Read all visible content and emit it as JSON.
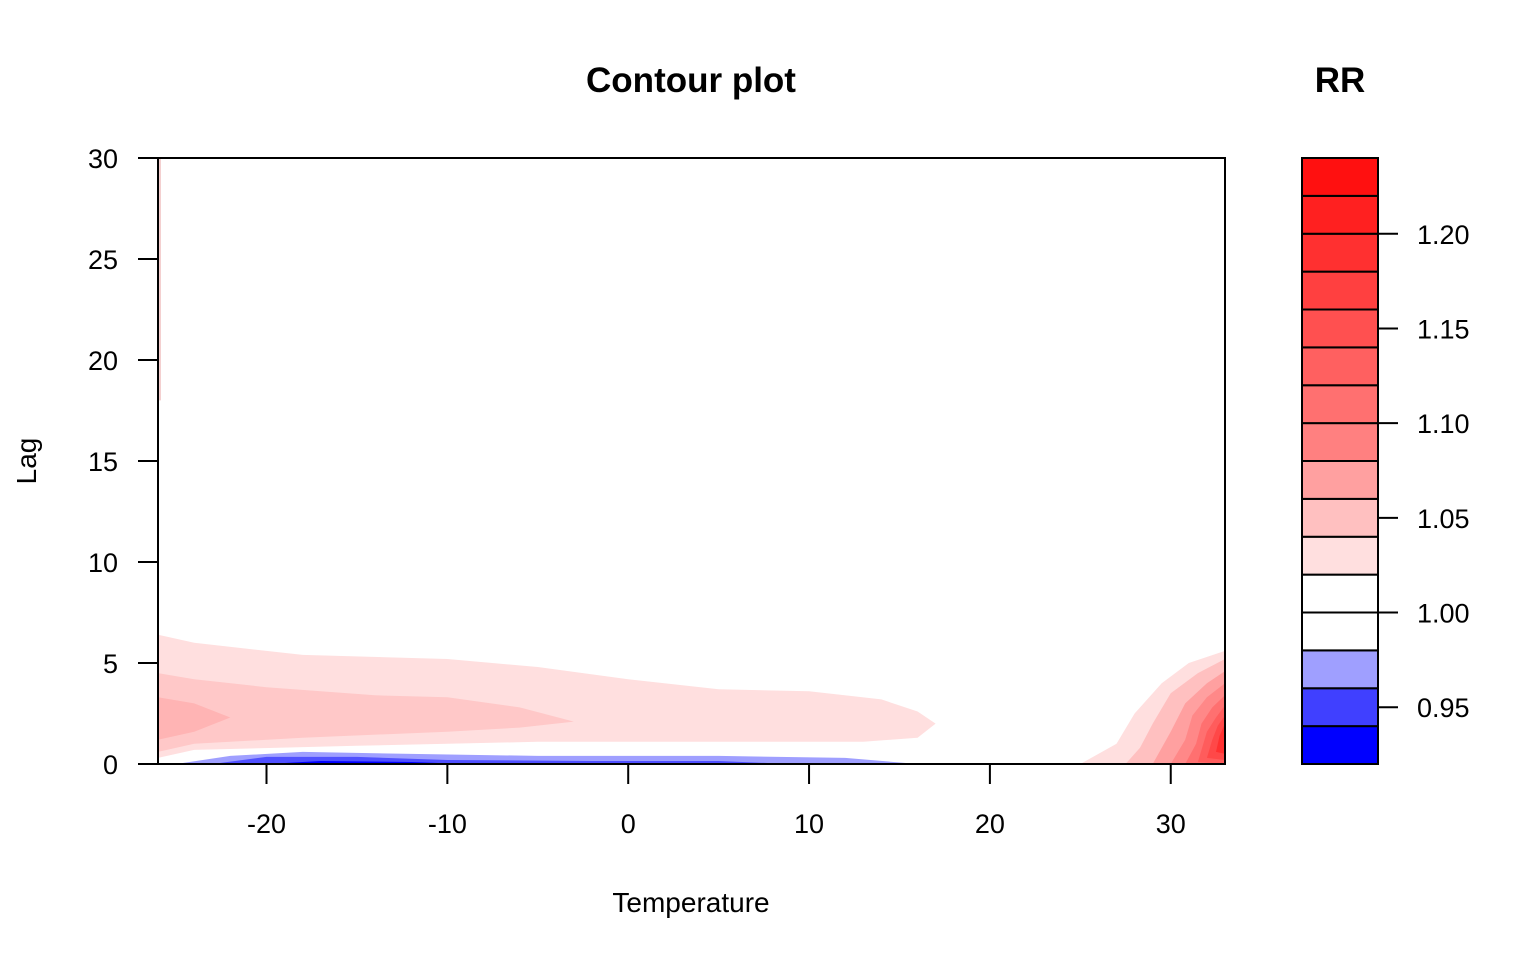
{
  "chart_data": {
    "type": "contour",
    "title": "Contour plot",
    "xlabel": "Temperature",
    "ylabel": "Lag",
    "xlim": [
      -26,
      33
    ],
    "ylim": [
      0,
      30
    ],
    "x_ticks": [
      "-20",
      "-10",
      "0",
      "10",
      "20",
      "30"
    ],
    "x_tick_values": [
      -20,
      -10,
      0,
      10,
      20,
      30
    ],
    "y_ticks": [
      "0",
      "5",
      "10",
      "15",
      "20",
      "25",
      "30"
    ],
    "y_tick_values": [
      0,
      5,
      10,
      15,
      20,
      25,
      30
    ],
    "legend": {
      "title": "RR",
      "placement": "right",
      "range": [
        0.92,
        1.24
      ],
      "levels": [
        0.92,
        0.94,
        0.96,
        0.98,
        1.0,
        1.02,
        1.04,
        1.06,
        1.08,
        1.1,
        1.12,
        1.14,
        1.16,
        1.18,
        1.2,
        1.22,
        1.24
      ],
      "colors": [
        "#0000ff",
        "#4040ff",
        "#9f9fff",
        "#ffffff",
        "#ffffff",
        "#ffdfdf",
        "#ffc0c0",
        "#ffa0a0",
        "#ff8080",
        "#ff7070",
        "#ff6060",
        "#ff5050",
        "#ff4040",
        "#ff3030",
        "#ff2020",
        "#ff1010"
      ],
      "tick_values": [
        0.95,
        1.0,
        1.05,
        1.1,
        1.15,
        1.2
      ],
      "tick_labels": [
        "0.95",
        "1.00",
        "1.05",
        "1.10",
        "1.15",
        "1.20"
      ]
    },
    "regions": [
      {
        "name": "low-lag-pale-pink",
        "rr": 1.02,
        "color": "#ffdfdf",
        "points": [
          [
            -26,
            0.3
          ],
          [
            -26,
            6.4
          ],
          [
            -24,
            6
          ],
          [
            -18,
            5.4
          ],
          [
            -10,
            5.2
          ],
          [
            -5,
            4.8
          ],
          [
            0,
            4.2
          ],
          [
            5,
            3.7
          ],
          [
            10,
            3.6
          ],
          [
            14,
            3.2
          ],
          [
            16,
            2.6
          ],
          [
            17,
            2.0
          ],
          [
            16,
            1.3
          ],
          [
            13,
            1.1
          ],
          [
            5,
            1.1
          ],
          [
            -5,
            1.1
          ],
          [
            -15,
            0.9
          ],
          [
            -24,
            0.7
          ]
        ]
      },
      {
        "name": "low-lag-pink",
        "rr": 1.04,
        "color": "#ffc8c8",
        "points": [
          [
            -26,
            0.6
          ],
          [
            -26,
            4.5
          ],
          [
            -24,
            4.2
          ],
          [
            -20,
            3.8
          ],
          [
            -14,
            3.4
          ],
          [
            -10,
            3.3
          ],
          [
            -6,
            2.8
          ],
          [
            -3,
            2.1
          ],
          [
            -6,
            1.8
          ],
          [
            -10,
            1.6
          ],
          [
            -18,
            1.3
          ],
          [
            -24,
            1.0
          ]
        ]
      },
      {
        "name": "low-lag-mid-pink",
        "rr": 1.06,
        "color": "#ffb4b4",
        "points": [
          [
            -26,
            1.2
          ],
          [
            -26,
            3.3
          ],
          [
            -24,
            3.0
          ],
          [
            -22,
            2.3
          ],
          [
            -24,
            1.6
          ]
        ]
      },
      {
        "name": "low-lag-blue-light",
        "rr": 0.97,
        "color": "#9f9fff",
        "points": [
          [
            -25,
            0
          ],
          [
            -22,
            0.4
          ],
          [
            -18,
            0.6
          ],
          [
            -12,
            0.5
          ],
          [
            -5,
            0.4
          ],
          [
            5,
            0.4
          ],
          [
            12,
            0.3
          ],
          [
            16,
            0
          ],
          [
            -25,
            0
          ]
        ]
      },
      {
        "name": "low-lag-blue-mid",
        "rr": 0.95,
        "color": "#5050ff",
        "points": [
          [
            -23,
            0
          ],
          [
            -20,
            0.35
          ],
          [
            -15,
            0.35
          ],
          [
            -10,
            0.2
          ],
          [
            -2,
            0.15
          ],
          [
            5,
            0.15
          ],
          [
            9,
            0
          ],
          [
            -23,
            0
          ]
        ]
      },
      {
        "name": "low-lag-blue-dark",
        "rr": 0.93,
        "color": "#0000ff",
        "points": [
          [
            -20,
            0
          ],
          [
            -17,
            0.15
          ],
          [
            -12,
            0.1
          ],
          [
            -9,
            0
          ],
          [
            -20,
            0
          ]
        ]
      },
      {
        "name": "hot-pale-pink",
        "rr": 1.02,
        "color": "#ffdfdf",
        "points": [
          [
            25,
            0
          ],
          [
            33,
            0
          ],
          [
            33,
            5.6
          ],
          [
            31,
            5.0
          ],
          [
            29.5,
            4.0
          ],
          [
            28,
            2.5
          ],
          [
            27,
            1.0
          ]
        ]
      },
      {
        "name": "hot-pink",
        "rr": 1.04,
        "color": "#ffc0c0",
        "points": [
          [
            27.5,
            0
          ],
          [
            33,
            0
          ],
          [
            33,
            5.2
          ],
          [
            31.5,
            4.5
          ],
          [
            30,
            3.5
          ],
          [
            29,
            2.0
          ],
          [
            28.3,
            0.8
          ]
        ]
      },
      {
        "name": "hot-mid-pink",
        "rr": 1.06,
        "color": "#ffa0a0",
        "points": [
          [
            29,
            0
          ],
          [
            33,
            0
          ],
          [
            33,
            4.6
          ],
          [
            32,
            4.0
          ],
          [
            30.8,
            3.0
          ],
          [
            30,
            1.6
          ]
        ]
      },
      {
        "name": "hot-pink-08",
        "rr": 1.08,
        "color": "#ff8888",
        "points": [
          [
            30,
            0
          ],
          [
            33,
            0
          ],
          [
            33,
            4.0
          ],
          [
            32,
            3.3
          ],
          [
            31.2,
            2.4
          ],
          [
            30.8,
            1.2
          ]
        ]
      },
      {
        "name": "hot-pink-10",
        "rr": 1.1,
        "color": "#ff7070",
        "points": [
          [
            30.8,
            0
          ],
          [
            33,
            0
          ],
          [
            33,
            3.4
          ],
          [
            32.3,
            2.8
          ],
          [
            31.7,
            2.0
          ],
          [
            31.4,
            1.0
          ]
        ]
      },
      {
        "name": "hot-pink-12",
        "rr": 1.12,
        "color": "#ff5c5c",
        "points": [
          [
            31.5,
            0.1
          ],
          [
            33,
            0
          ],
          [
            33,
            2.9
          ],
          [
            32.5,
            2.3
          ],
          [
            32,
            1.6
          ]
        ]
      },
      {
        "name": "hot-pink-14",
        "rr": 1.14,
        "color": "#ff4848",
        "points": [
          [
            32,
            0.3
          ],
          [
            33,
            0.2
          ],
          [
            33,
            2.4
          ],
          [
            32.6,
            1.9
          ],
          [
            32.3,
            1.2
          ]
        ]
      },
      {
        "name": "hot-pink-16",
        "rr": 1.16,
        "color": "#ff3030",
        "points": [
          [
            32.5,
            0.6
          ],
          [
            33,
            0.5
          ],
          [
            33,
            2.0
          ],
          [
            32.7,
            1.4
          ]
        ]
      }
    ]
  }
}
